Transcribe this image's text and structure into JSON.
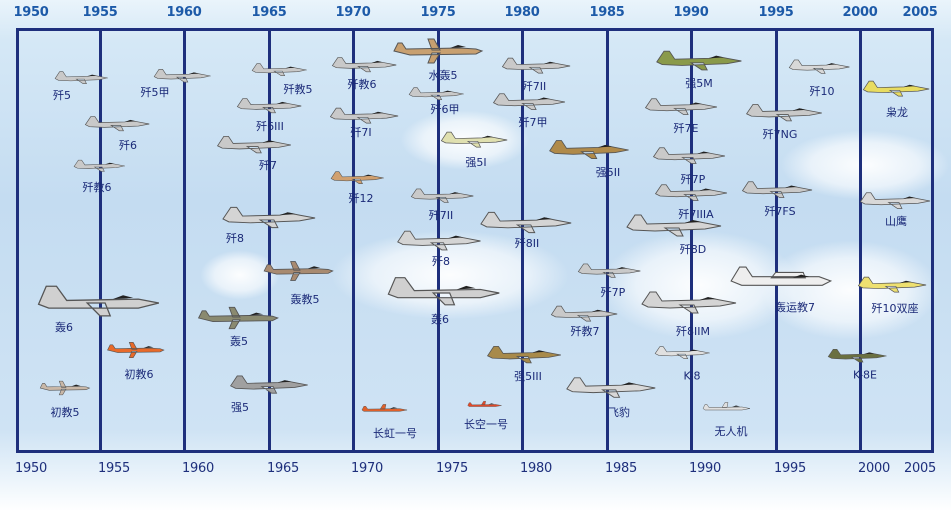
{
  "timeline": {
    "years": [
      "1950",
      "1955",
      "1960",
      "1965",
      "1970",
      "1975",
      "1980",
      "1985",
      "1990",
      "1995",
      "2000",
      "2005"
    ],
    "line_color": "#1e2f7c",
    "top_label_color": "#1d5aa8"
  },
  "aircraft": [
    {
      "label": "歼5",
      "color": "#c9c9c9",
      "icon": "jet-fighter-icon"
    },
    {
      "label": "歼5甲",
      "color": "#c9c9c9",
      "icon": "jet-fighter-icon"
    },
    {
      "label": "歼6",
      "color": "#c9c9c9",
      "icon": "jet-fighter-icon"
    },
    {
      "label": "歼教6",
      "color": "#c9c9c9",
      "icon": "jet-trainer-icon"
    },
    {
      "label": "轰6",
      "color": "#d0d0d0",
      "icon": "bomber-icon"
    },
    {
      "label": "初教6",
      "color": "#e86a2a",
      "icon": "prop-trainer-icon"
    },
    {
      "label": "初教5",
      "color": "#c9b8a8",
      "icon": "prop-trainer-icon"
    },
    {
      "label": "歼教5",
      "color": "#c9c9c9",
      "icon": "jet-trainer-icon"
    },
    {
      "label": "歼6III",
      "color": "#c9c9c9",
      "icon": "jet-fighter-icon"
    },
    {
      "label": "歼7",
      "color": "#c9c9c9",
      "icon": "jet-fighter-icon"
    },
    {
      "label": "歼8",
      "color": "#d4d4d4",
      "icon": "jet-fighter-icon"
    },
    {
      "label": "轰教5",
      "color": "#a88a70",
      "icon": "prop-bomber-icon"
    },
    {
      "label": "轰5",
      "color": "#8a8a70",
      "icon": "prop-bomber-icon"
    },
    {
      "label": "强5",
      "color": "#a0a0a0",
      "icon": "attack-jet-icon"
    },
    {
      "label": "歼教6",
      "color": "#c9c9c9",
      "icon": "jet-trainer-icon"
    },
    {
      "label": "歼7I",
      "color": "#c9c9c9",
      "icon": "jet-fighter-icon"
    },
    {
      "label": "歼12",
      "color": "#d0a070",
      "icon": "jet-fighter-icon"
    },
    {
      "label": "水轰5",
      "color": "#c8a070",
      "icon": "seaplane-icon"
    },
    {
      "label": "歼6甲",
      "color": "#c9c9c9",
      "icon": "jet-fighter-icon"
    },
    {
      "label": "强5I",
      "color": "#e0e0b0",
      "icon": "attack-jet-icon"
    },
    {
      "label": "歼7II",
      "color": "#c9c9c9",
      "icon": "jet-fighter-icon"
    },
    {
      "label": "歼8",
      "color": "#d4d4d4",
      "icon": "jet-fighter-icon"
    },
    {
      "label": "轰6",
      "color": "#d0d0d0",
      "icon": "bomber-icon"
    },
    {
      "label": "长虹一号",
      "color": "#e0602a",
      "icon": "drone-icon"
    },
    {
      "label": "长空一号",
      "color": "#e04a2a",
      "icon": "drone-icon"
    },
    {
      "label": "歼7II",
      "color": "#c9c9c9",
      "icon": "jet-fighter-icon"
    },
    {
      "label": "歼7甲",
      "color": "#c9c9c9",
      "icon": "jet-fighter-icon"
    },
    {
      "label": "强5II",
      "color": "#b08a4a",
      "icon": "attack-jet-icon"
    },
    {
      "label": "歼8II",
      "color": "#d4d4d4",
      "icon": "jet-fighter-icon"
    },
    {
      "label": "强5III",
      "color": "#a88a4a",
      "icon": "attack-jet-icon"
    },
    {
      "label": "歼7P",
      "color": "#c9c9c9",
      "icon": "jet-fighter-icon"
    },
    {
      "label": "歼教7",
      "color": "#c9c9c9",
      "icon": "jet-trainer-icon"
    },
    {
      "label": "飞豹",
      "color": "#d8d8d8",
      "icon": "attack-jet-icon"
    },
    {
      "label": "强5M",
      "color": "#8a9a4a",
      "icon": "attack-jet-icon"
    },
    {
      "label": "歼7E",
      "color": "#c9c9c9",
      "icon": "jet-fighter-icon"
    },
    {
      "label": "歼7P",
      "color": "#c9c9c9",
      "icon": "jet-fighter-icon"
    },
    {
      "label": "歼7IIIA",
      "color": "#c9c9c9",
      "icon": "jet-fighter-icon"
    },
    {
      "label": "歼8D",
      "color": "#d4d4d4",
      "icon": "jet-fighter-icon"
    },
    {
      "label": "歼8IIM",
      "color": "#d4d4d4",
      "icon": "jet-fighter-icon"
    },
    {
      "label": "K-8",
      "color": "#e0e0e0",
      "icon": "jet-trainer-icon"
    },
    {
      "label": "无人机",
      "color": "#e0e0e0",
      "icon": "drone-icon"
    },
    {
      "label": "歼10",
      "color": "#d8d8d8",
      "icon": "jet-fighter-icon"
    },
    {
      "label": "歼7NG",
      "color": "#c9c9c9",
      "icon": "jet-fighter-icon"
    },
    {
      "label": "歼7FS",
      "color": "#c9c9c9",
      "icon": "jet-fighter-icon"
    },
    {
      "label": "轰运教7",
      "color": "#eeeeee",
      "icon": "transport-icon"
    },
    {
      "label": "枭龙",
      "color": "#e8dc60",
      "icon": "jet-fighter-icon"
    },
    {
      "label": "山鹰",
      "color": "#d8d8d8",
      "icon": "jet-trainer-icon"
    },
    {
      "label": "歼10双座",
      "color": "#eee070",
      "icon": "jet-fighter-icon"
    },
    {
      "label": "K-8E",
      "color": "#6a7040",
      "icon": "jet-trainer-icon"
    }
  ]
}
